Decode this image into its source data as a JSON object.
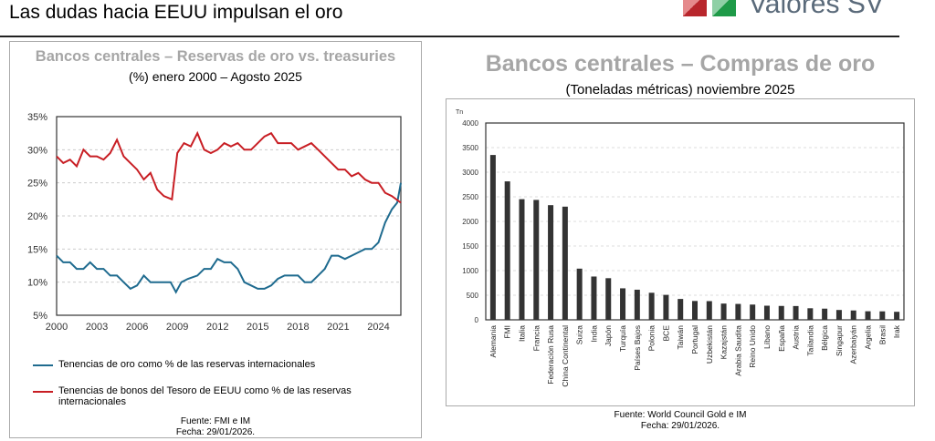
{
  "header": {
    "title": "Las dudas hacia EEUU impulsan el oro",
    "logo_text": "Valores SV"
  },
  "colors": {
    "gold": "#1f6b8f",
    "treasury": "#c81e24",
    "title_gray": "#a6a6a6",
    "bar": "#333333"
  },
  "chart_data": [
    {
      "type": "line",
      "title": "Bancos centrales – Reservas de oro vs. treasuries",
      "subtitle": "(%) enero 2000 – Agosto 2025",
      "xlim": [
        2000,
        2025.67
      ],
      "ylim": [
        5,
        35
      ],
      "yticks": [
        "35%",
        "30%",
        "25%",
        "20%",
        "15%",
        "10%",
        "5%"
      ],
      "ytick_values": [
        35,
        30,
        25,
        20,
        15,
        10,
        5
      ],
      "xticks": [
        "2000",
        "2003",
        "2006",
        "2009",
        "2012",
        "2015",
        "2018",
        "2021",
        "2024"
      ],
      "grid": true,
      "series": [
        {
          "name": "Tenencias de oro como % de las reservas internacionales",
          "color": "#1f6b8f",
          "x": [
            2000,
            2000.5,
            2001,
            2001.5,
            2002,
            2002.5,
            2003,
            2003.5,
            2004,
            2004.5,
            2005,
            2005.5,
            2006,
            2006.5,
            2007,
            2007.5,
            2008,
            2008.5,
            2008.9,
            2009.3,
            2009.8,
            2010.5,
            2011,
            2011.5,
            2012,
            2012.5,
            2013,
            2013.5,
            2014,
            2014.5,
            2015,
            2015.5,
            2016,
            2016.5,
            2017,
            2017.5,
            2018,
            2018.5,
            2019,
            2019.5,
            2020,
            2020.5,
            2021,
            2021.5,
            2022,
            2022.5,
            2023,
            2023.5,
            2024,
            2024.5,
            2025,
            2025.4,
            2025.67
          ],
          "y": [
            14,
            13,
            13,
            12,
            12,
            13,
            12,
            12,
            11,
            11,
            10,
            9,
            9.5,
            11,
            10,
            10,
            10,
            10,
            8.5,
            10,
            10.5,
            11,
            12,
            12,
            13.5,
            13,
            13,
            12,
            10,
            9.5,
            9,
            9,
            9.5,
            10.5,
            11,
            11,
            11,
            10,
            10,
            11,
            12,
            14,
            14,
            13.5,
            14,
            14.5,
            15,
            15,
            16,
            19,
            21,
            22,
            25
          ]
        },
        {
          "name": "Tenencias de bonos del Tesoro de EEUU como % de las reservas internacionales",
          "color": "#c81e24",
          "x": [
            2000,
            2000.5,
            2001,
            2001.5,
            2002,
            2002.5,
            2003,
            2003.5,
            2004,
            2004.5,
            2005,
            2005.5,
            2006,
            2006.5,
            2007,
            2007.5,
            2008,
            2008.6,
            2009,
            2009.5,
            2010,
            2010.5,
            2011,
            2011.5,
            2012,
            2012.5,
            2013,
            2013.5,
            2014,
            2014.5,
            2015,
            2015.5,
            2016,
            2016.5,
            2017,
            2017.5,
            2018,
            2018.5,
            2019,
            2019.5,
            2020,
            2020.5,
            2021,
            2021.5,
            2022,
            2022.5,
            2023,
            2023.5,
            2024,
            2024.5,
            2025,
            2025.67
          ],
          "y": [
            29,
            28,
            28.5,
            27.5,
            30,
            29,
            29,
            28.5,
            29.5,
            31.5,
            29,
            28,
            27,
            25.5,
            26.5,
            24,
            23,
            22.5,
            29.5,
            31,
            30.5,
            32.5,
            30,
            29.5,
            30,
            31,
            30.5,
            31,
            30,
            30,
            31,
            32,
            32.5,
            31,
            31,
            31,
            30,
            30.5,
            31,
            30,
            29,
            28,
            27,
            27,
            26,
            26.5,
            25.5,
            25,
            25,
            23.5,
            23,
            22
          ]
        }
      ],
      "source": "Fuente: FMI e IM",
      "date": "Fecha: 29/01/2026."
    },
    {
      "type": "bar",
      "title": "Bancos centrales – Compras de oro",
      "subtitle": "(Toneladas métricas) noviembre 2025",
      "ylabel": "Tn",
      "ylim": [
        0,
        4000
      ],
      "yticks": [
        "4000",
        "3500",
        "3000",
        "2500",
        "2000",
        "1500",
        "1000",
        "500",
        "0"
      ],
      "ytick_values": [
        4000,
        3500,
        3000,
        2500,
        2000,
        1500,
        1000,
        500,
        0
      ],
      "categories": [
        "Alemania",
        "FMI",
        "Italia",
        "Francia",
        "Federación Rusa",
        "China Continental",
        "Suiza",
        "India",
        "Japón",
        "Turquía",
        "Países Bajos",
        "Polonia",
        "BCE",
        "Taiwán",
        "Portugal",
        "Uzbekistán",
        "Kazajstán",
        "Arabia Saudita",
        "Reino Unido",
        "Líbano",
        "España",
        "Austria",
        "Tailandia",
        "Bélgica",
        "Singapur",
        "Azerbaiyán",
        "Argelia",
        "Brasil",
        "Irak"
      ],
      "values": [
        3350,
        2814,
        2452,
        2437,
        2330,
        2300,
        1040,
        880,
        846,
        640,
        612,
        550,
        507,
        424,
        383,
        380,
        330,
        323,
        310,
        287,
        282,
        280,
        235,
        227,
        200,
        190,
        174,
        172,
        163
      ],
      "source": "Fuente: World Council Gold e IM",
      "date": "Fecha: 29/01/2026."
    }
  ]
}
